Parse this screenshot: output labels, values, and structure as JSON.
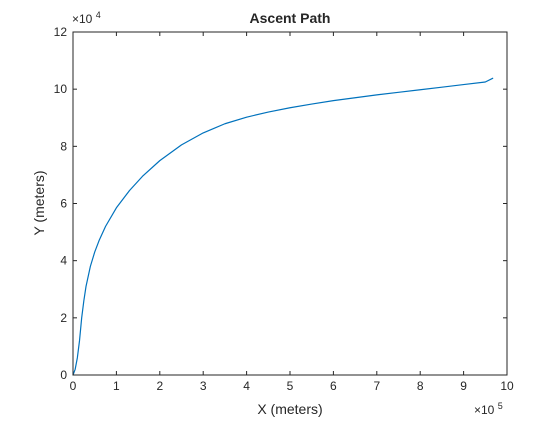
{
  "chart_data": {
    "type": "line",
    "title": "Ascent Path",
    "xlabel": "X (meters)",
    "ylabel": "Y (meters)",
    "x_exponent_label": "×10",
    "x_exponent_power": "5",
    "y_exponent_label": "×10",
    "y_exponent_power": "4",
    "xlim": [
      0,
      1000000
    ],
    "ylim": [
      0,
      120000
    ],
    "x_ticks": [
      0,
      100000,
      200000,
      300000,
      400000,
      500000,
      600000,
      700000,
      800000,
      900000,
      1000000
    ],
    "x_tick_labels": [
      "0",
      "1",
      "2",
      "3",
      "4",
      "5",
      "6",
      "7",
      "8",
      "9",
      "10"
    ],
    "y_ticks": [
      0,
      20000,
      40000,
      60000,
      80000,
      100000,
      120000
    ],
    "y_tick_labels": [
      "0",
      "2",
      "4",
      "6",
      "8",
      "10",
      "12"
    ],
    "grid": false,
    "series": [
      {
        "color": "#0072BD",
        "x": [
          0,
          5000,
          10000,
          15000,
          20000,
          25000,
          30000,
          40000,
          50000,
          60000,
          75000,
          100000,
          130000,
          160000,
          200000,
          250000,
          300000,
          350000,
          400000,
          450000,
          500000,
          550000,
          600000,
          650000,
          700000,
          750000,
          800000,
          850000,
          900000,
          950000,
          967000
        ],
        "y": [
          0,
          2000,
          6000,
          12000,
          20000,
          26000,
          31000,
          38000,
          43000,
          47000,
          52000,
          58500,
          64500,
          69500,
          75000,
          80500,
          84700,
          87900,
          90200,
          92000,
          93500,
          94800,
          96000,
          97000,
          98000,
          98900,
          99800,
          100700,
          101600,
          102500,
          103800
        ]
      }
    ]
  }
}
